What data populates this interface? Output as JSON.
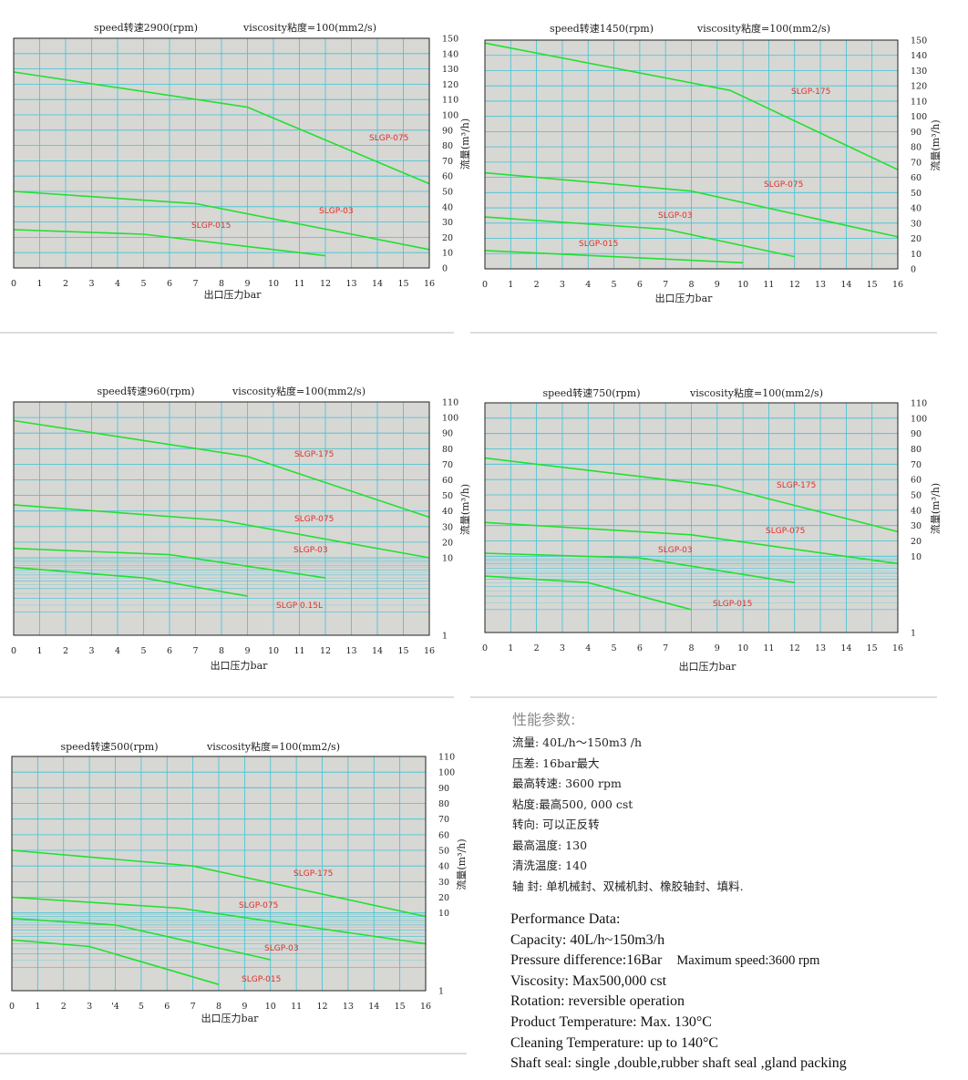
{
  "chart_data": [
    {
      "type": "line",
      "title_speed": "speed转速2900(rpm)",
      "title_viscosity": "viscosity粘度=100(mm2/s)",
      "xlabel": "出口压力bar",
      "ylabel": "流量(m³/h)",
      "xlim": [
        0,
        16
      ],
      "ylim": [
        0,
        150
      ],
      "yscale": "linear",
      "x_ticks": [
        0,
        1,
        2,
        3,
        4,
        5,
        6,
        7,
        8,
        9,
        10,
        11,
        12,
        13,
        14,
        15,
        16
      ],
      "y_ticks": [
        0,
        10,
        20,
        30,
        40,
        50,
        60,
        70,
        80,
        90,
        100,
        110,
        120,
        130,
        140,
        150
      ],
      "grid": true,
      "series": [
        {
          "name": "SLGP-075",
          "x": [
            0,
            9,
            16
          ],
          "y": [
            128,
            105,
            55
          ]
        },
        {
          "name": "SLGP-03",
          "x": [
            0,
            7,
            16
          ],
          "y": [
            50,
            42,
            12
          ]
        },
        {
          "name": "SLGP-015",
          "x": [
            0,
            5,
            12
          ],
          "y": [
            25,
            22,
            8
          ]
        }
      ]
    },
    {
      "type": "line",
      "title_speed": "speed转速1450(rpm)",
      "title_viscosity": "viscosity粘度=100(mm2/s)",
      "xlabel": "出口压力bar",
      "ylabel": "流量(m³/h)",
      "xlim": [
        0,
        16
      ],
      "ylim": [
        0,
        150
      ],
      "yscale": "linear",
      "x_ticks": [
        0,
        1,
        2,
        3,
        4,
        5,
        6,
        7,
        8,
        9,
        10,
        11,
        12,
        13,
        14,
        15,
        16
      ],
      "y_ticks": [
        0,
        10,
        20,
        30,
        40,
        50,
        60,
        70,
        80,
        90,
        100,
        110,
        120,
        130,
        140,
        150
      ],
      "grid": true,
      "series": [
        {
          "name": "SLGP-175",
          "x": [
            0,
            9.5,
            16
          ],
          "y": [
            148,
            117,
            65
          ]
        },
        {
          "name": "SLGP-075",
          "x": [
            0,
            8,
            16
          ],
          "y": [
            63,
            51,
            21
          ]
        },
        {
          "name": "SLGP-03",
          "x": [
            0,
            7,
            12
          ],
          "y": [
            34,
            26,
            8
          ]
        },
        {
          "name": "SLGP-015",
          "x": [
            0,
            10
          ],
          "y": [
            12,
            4
          ]
        }
      ]
    },
    {
      "type": "line",
      "title_speed": "speed转速960(rpm)",
      "title_viscosity": "viscosity粘度=100(mm2/s)",
      "xlabel": "出口压力bar",
      "ylabel": "流量(m³/h)",
      "xlim": [
        0,
        16
      ],
      "ylim": [
        1,
        110
      ],
      "yscale": "split",
      "y_ticks_upper": [
        10,
        20,
        30,
        40,
        50,
        60,
        70,
        80,
        90,
        100,
        110
      ],
      "y_ticks_lower": [
        1
      ],
      "x_ticks": [
        0,
        1,
        2,
        3,
        4,
        5,
        6,
        7,
        8,
        9,
        10,
        11,
        12,
        13,
        14,
        15,
        16
      ],
      "grid": true,
      "series": [
        {
          "name": "SLGP-175",
          "x": [
            0,
            9,
            16
          ],
          "y": [
            98,
            75,
            36
          ]
        },
        {
          "name": "SLGP-075",
          "x": [
            0,
            8,
            16
          ],
          "y": [
            44,
            34,
            10
          ]
        },
        {
          "name": "SLGP-03",
          "x": [
            0,
            6,
            12
          ],
          "y": [
            16,
            12,
            5.5
          ]
        },
        {
          "name": "SLGP  0.15L",
          "x": [
            0,
            5,
            9
          ],
          "y": [
            7.5,
            5.5,
            3.2
          ]
        }
      ]
    },
    {
      "type": "line",
      "title_speed": "speed转速750(rpm)",
      "title_viscosity": "viscosity粘度=100(mm2/s)",
      "xlabel": "出口压力bar",
      "ylabel": "流量(m³/h)",
      "xlim": [
        0,
        16
      ],
      "ylim": [
        1,
        110
      ],
      "yscale": "split",
      "y_ticks_upper": [
        10,
        20,
        30,
        40,
        50,
        60,
        70,
        80,
        90,
        100,
        110
      ],
      "y_ticks_lower": [
        1
      ],
      "x_ticks": [
        0,
        1,
        2,
        3,
        4,
        5,
        6,
        7,
        8,
        9,
        10,
        11,
        12,
        13,
        14,
        15,
        16
      ],
      "grid": true,
      "series": [
        {
          "name": "SLGP-175",
          "x": [
            0,
            9,
            16
          ],
          "y": [
            74,
            56,
            26
          ]
        },
        {
          "name": "SLGP-075",
          "x": [
            0,
            8,
            16
          ],
          "y": [
            32,
            24,
            8
          ]
        },
        {
          "name": "SLGP-03",
          "x": [
            0,
            6,
            12
          ],
          "y": [
            12,
            9.5,
            4.5
          ]
        },
        {
          "name": "SLGP-015",
          "x": [
            0,
            4,
            8
          ],
          "y": [
            5.5,
            4.5,
            2
          ]
        }
      ]
    },
    {
      "type": "line",
      "title_speed": "speed转速500(rpm)",
      "title_viscosity": "viscosity粘度=100(mm2/s)",
      "xlabel": "出口压力bar",
      "ylabel": "流量(m³/h)",
      "xlim": [
        0,
        16
      ],
      "ylim": [
        1,
        110
      ],
      "yscale": "split",
      "y_ticks_upper": [
        10,
        20,
        30,
        40,
        50,
        60,
        70,
        80,
        90,
        100,
        110
      ],
      "y_ticks_lower": [
        1
      ],
      "x_ticks": [
        0,
        1,
        2,
        3,
        4,
        5,
        6,
        7,
        8,
        9,
        10,
        11,
        12,
        13,
        14,
        15,
        16
      ],
      "x_tick_labels": [
        "0",
        "1",
        "2",
        "3",
        "'4",
        "5",
        "6",
        "7",
        "8",
        "9",
        "10",
        "11",
        "12",
        "13",
        "14",
        "15",
        "16"
      ],
      "grid": true,
      "series": [
        {
          "name": "SLGP-175",
          "x": [
            0,
            7,
            16
          ],
          "y": [
            50,
            40,
            9
          ]
        },
        {
          "name": "SLGP-075",
          "x": [
            0,
            6.5,
            16
          ],
          "y": [
            20,
            13,
            4
          ]
        },
        {
          "name": "SLGP-03",
          "x": [
            0,
            4,
            10
          ],
          "y": [
            8.5,
            7,
            2.5
          ]
        },
        {
          "name": "SLGP-015",
          "x": [
            0,
            3,
            8
          ],
          "y": [
            4.5,
            3.7,
            1.2
          ]
        }
      ]
    }
  ],
  "performance": {
    "cn_title": "性能参数:",
    "cn_lines": [
      "流量: 40L/h～150m3 /h",
      "压差: 16bar最大",
      "最高转速: 3600 rpm",
      "粘度:最高500, 000 cst",
      "转向: 可以正反转",
      "最高温度: 130",
      "清洗温度: 140",
      "轴    封:  单机械封、双械机封、橡胶轴封、填料."
    ],
    "en_title": "Performance Data:",
    "en_capacity": "Capacity: 40L/h~150m3/h",
    "en_pressure": "Pressure difference:16Bar",
    "en_max_speed": "Maximum speed:3600 rpm",
    "en_lines": [
      "Viscosity: Max500,000 cst",
      "Rotation: reversible operation",
      "Product Temperature: Max. 130°C",
      "Cleaning Temperature: up to 140°C",
      "Shaft seal: single ,double,rubber shaft seal ,gland packing"
    ]
  }
}
